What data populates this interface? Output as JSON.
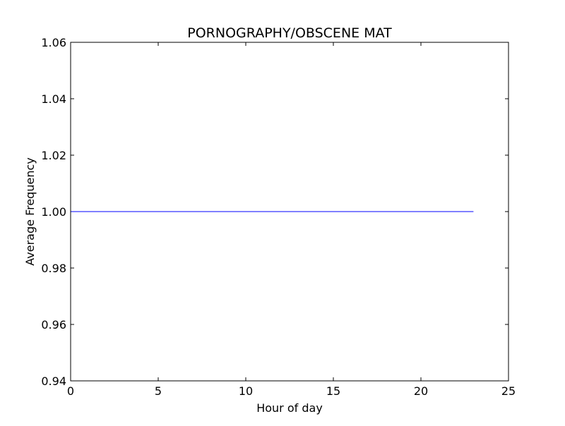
{
  "chart_data": {
    "type": "line",
    "title": "PORNOGRAPHY/OBSCENE MAT",
    "xlabel": "Hour of day",
    "ylabel": "Average Frequency",
    "xlim": [
      0,
      25
    ],
    "ylim": [
      0.94,
      1.06
    ],
    "xticks": [
      0,
      5,
      10,
      15,
      20,
      25
    ],
    "xtick_labels": [
      "0",
      "5",
      "10",
      "15",
      "20",
      "25"
    ],
    "yticks": [
      0.94,
      0.96,
      0.98,
      1.0,
      1.02,
      1.04,
      1.06
    ],
    "ytick_labels": [
      "0.94",
      "0.96",
      "0.98",
      "1.00",
      "1.02",
      "1.04",
      "1.06"
    ],
    "grid": false,
    "series": [
      {
        "color": "#0000ff",
        "x": [
          0,
          1,
          2,
          3,
          4,
          5,
          6,
          7,
          8,
          9,
          10,
          11,
          12,
          13,
          14,
          15,
          16,
          17,
          18,
          19,
          20,
          21,
          22,
          23
        ],
        "y": [
          1,
          1,
          1,
          1,
          1,
          1,
          1,
          1,
          1,
          1,
          1,
          1,
          1,
          1,
          1,
          1,
          1,
          1,
          1,
          1,
          1,
          1,
          1,
          1
        ]
      }
    ]
  }
}
